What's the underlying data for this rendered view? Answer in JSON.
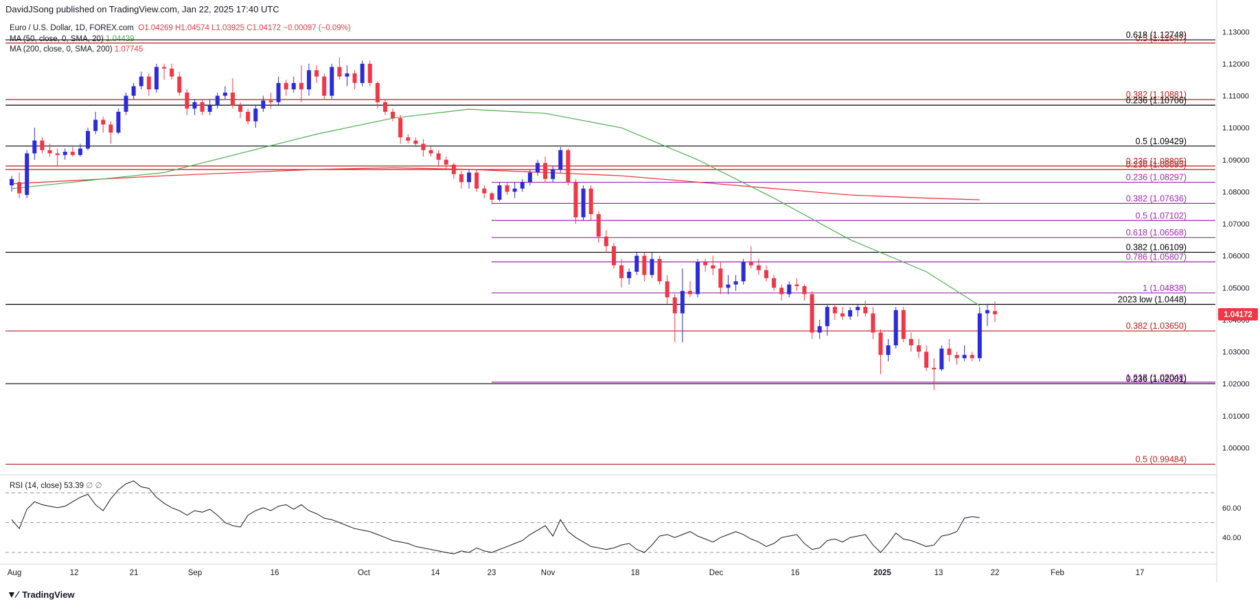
{
  "header": {
    "published": "DavidJSong published on TradingView.com, Jan 22, 2025 17:40 UTC"
  },
  "legend": {
    "symbol": "Euro / U.S. Dollar, 1D, FOREX.com",
    "ohlc": "O1.04269  H1.04574  L1.03925  C1.04172  −0.00097 (−0.09%)",
    "ma50_label": "MA (50, close, 0, SMA, 20)",
    "ma50_value": "1.04439",
    "ma200_label": "MA (200, close, 0, SMA, 200)",
    "ma200_value": "1.07745"
  },
  "rsi": {
    "label": "RSI (14, close)",
    "value": "53.39",
    "extra": "∅ ∅"
  },
  "footer": {
    "brand": "TradingView"
  },
  "colors": {
    "up": "#2b2bdb",
    "down": "#f23645",
    "ma50": "#4caf50",
    "ma200": "#f23645",
    "fib_purple": "#9c27b0",
    "level_black": "#000000",
    "level_red": "#b71c1c",
    "price_tag": "#f23645"
  },
  "chart_data": {
    "type": "candlestick",
    "title": "Euro / U.S. Dollar, 1D, FOREX.com",
    "ylim": [
      0.9915,
      1.1335
    ],
    "y_ticks": [
      "1.13000",
      "1.12000",
      "1.11000",
      "1.10000",
      "1.09000",
      "1.08000",
      "1.07000",
      "1.06000",
      "1.05000",
      "1.04000",
      "1.03000",
      "1.02000",
      "1.01000",
      "1.00000"
    ],
    "x_ticks": [
      "Aug",
      "12",
      "21",
      "Sep",
      "16",
      "Oct",
      "14",
      "23",
      "Nov",
      "18",
      "Dec",
      "16",
      "2025",
      "13",
      "22",
      "Feb",
      "17"
    ],
    "last_price": "1.04172",
    "levels": [
      {
        "label": "0.618 (1.12748)",
        "value": 1.12748,
        "style": "black"
      },
      {
        "label": "0.5 (1.12647)",
        "value": 1.12647,
        "style": "red"
      },
      {
        "label": "0.382 (1.10881)",
        "value": 1.10881,
        "style": "red"
      },
      {
        "label": "0.236 (1.10706)",
        "value": 1.10706,
        "style": "black"
      },
      {
        "label": "0.5 (1.09429)",
        "value": 1.09429,
        "style": "black"
      },
      {
        "label": "0.236 (1.08805)",
        "value": 1.08805,
        "style": "red"
      },
      {
        "label": "0.236 (1.08695)",
        "value": 1.08695,
        "style": "red"
      },
      {
        "label": "0.236 (1.08297)",
        "value": 1.08297,
        "style": "purple"
      },
      {
        "label": "0.382 (1.07636)",
        "value": 1.07636,
        "style": "purple"
      },
      {
        "label": "0.5 (1.07102)",
        "value": 1.07102,
        "style": "purple"
      },
      {
        "label": "0.618 (1.06568)",
        "value": 1.06568,
        "style": "purple"
      },
      {
        "label": "0.382 (1.06109)",
        "value": 1.06109,
        "style": "black"
      },
      {
        "label": "0.786 (1.05807)",
        "value": 1.05807,
        "style": "purple"
      },
      {
        "label": "1 (1.04838)",
        "value": 1.04838,
        "style": "purple"
      },
      {
        "label": "2023 low (1.0448)",
        "value": 1.0448,
        "style": "black"
      },
      {
        "label": "0.382 (1.03650)",
        "value": 1.0365,
        "style": "red"
      },
      {
        "label": "1.618 (1.02048)",
        "value": 1.02048,
        "style": "purple"
      },
      {
        "label": "0.236 (1.02001)",
        "value": 1.02001,
        "style": "black"
      },
      {
        "label": "0.5 (0.99484)",
        "value": 0.99484,
        "style": "red"
      }
    ],
    "candles": [
      [
        1.082,
        1.085,
        1.08,
        1.084
      ],
      [
        1.083,
        1.086,
        1.078,
        1.0795
      ],
      [
        1.079,
        1.093,
        1.078,
        1.092
      ],
      [
        1.092,
        1.1,
        1.09,
        1.096
      ],
      [
        1.096,
        1.097,
        1.092,
        1.093
      ],
      [
        1.093,
        1.095,
        1.091,
        1.092
      ],
      [
        1.092,
        1.0935,
        1.088,
        1.0915
      ],
      [
        1.0915,
        1.0935,
        1.09,
        1.0925
      ],
      [
        1.0925,
        1.094,
        1.091,
        1.0915
      ],
      [
        1.0915,
        1.095,
        1.091,
        1.0935
      ],
      [
        1.0935,
        1.1,
        1.093,
        1.099
      ],
      [
        1.099,
        1.105,
        1.098,
        1.1025
      ],
      [
        1.1025,
        1.1035,
        1.0985,
        1.101
      ],
      [
        1.101,
        1.102,
        1.095,
        1.0985
      ],
      [
        1.0985,
        1.106,
        1.098,
        1.105
      ],
      [
        1.105,
        1.111,
        1.104,
        1.11
      ],
      [
        1.11,
        1.114,
        1.109,
        1.113
      ],
      [
        1.113,
        1.1175,
        1.112,
        1.116
      ],
      [
        1.116,
        1.117,
        1.11,
        1.112
      ],
      [
        1.112,
        1.12,
        1.111,
        1.119
      ],
      [
        1.119,
        1.12,
        1.115,
        1.1185
      ],
      [
        1.1185,
        1.12,
        1.115,
        1.116
      ],
      [
        1.116,
        1.1175,
        1.11,
        1.111
      ],
      [
        1.111,
        1.112,
        1.104,
        1.106
      ],
      [
        1.106,
        1.109,
        1.104,
        1.108
      ],
      [
        1.108,
        1.109,
        1.104,
        1.105
      ],
      [
        1.105,
        1.109,
        1.104,
        1.107
      ],
      [
        1.107,
        1.111,
        1.106,
        1.11
      ],
      [
        1.11,
        1.113,
        1.109,
        1.111
      ],
      [
        1.111,
        1.1155,
        1.106,
        1.107
      ],
      [
        1.107,
        1.108,
        1.103,
        1.105
      ],
      [
        1.105,
        1.106,
        1.101,
        1.102
      ],
      [
        1.102,
        1.107,
        1.1,
        1.106
      ],
      [
        1.106,
        1.11,
        1.105,
        1.1085
      ],
      [
        1.1085,
        1.111,
        1.106,
        1.108
      ],
      [
        1.108,
        1.116,
        1.107,
        1.114
      ],
      [
        1.114,
        1.115,
        1.11,
        1.112
      ],
      [
        1.112,
        1.116,
        1.111,
        1.114
      ],
      [
        1.114,
        1.1195,
        1.108,
        1.112
      ],
      [
        1.112,
        1.12,
        1.11,
        1.118
      ],
      [
        1.118,
        1.1195,
        1.114,
        1.116
      ],
      [
        1.116,
        1.117,
        1.109,
        1.11
      ],
      [
        1.11,
        1.12,
        1.109,
        1.119
      ],
      [
        1.119,
        1.122,
        1.115,
        1.116
      ],
      [
        1.116,
        1.1195,
        1.113,
        1.117
      ],
      [
        1.117,
        1.118,
        1.112,
        1.114
      ],
      [
        1.114,
        1.121,
        1.113,
        1.12
      ],
      [
        1.12,
        1.121,
        1.113,
        1.114
      ],
      [
        1.114,
        1.1145,
        1.106,
        1.108
      ],
      [
        1.108,
        1.109,
        1.104,
        1.105
      ],
      [
        1.105,
        1.106,
        1.102,
        1.103
      ],
      [
        1.103,
        1.104,
        1.095,
        1.097
      ],
      [
        1.097,
        1.098,
        1.095,
        1.096
      ],
      [
        1.096,
        1.097,
        1.094,
        1.095
      ],
      [
        1.095,
        1.0965,
        1.091,
        1.093
      ],
      [
        1.093,
        1.0945,
        1.091,
        1.092
      ],
      [
        1.092,
        1.093,
        1.088,
        1.09
      ],
      [
        1.09,
        1.091,
        1.087,
        1.0885
      ],
      [
        1.0885,
        1.089,
        1.084,
        1.0855
      ],
      [
        1.0855,
        1.0865,
        1.081,
        1.083
      ],
      [
        1.083,
        1.087,
        1.081,
        1.086
      ],
      [
        1.086,
        1.087,
        1.08,
        1.081
      ],
      [
        1.081,
        1.082,
        1.078,
        1.0795
      ],
      [
        1.0795,
        1.08,
        1.076,
        1.0775
      ],
      [
        1.0775,
        1.083,
        1.077,
        1.082
      ],
      [
        1.082,
        1.083,
        1.079,
        1.08
      ],
      [
        1.08,
        1.083,
        1.078,
        1.081
      ],
      [
        1.081,
        1.084,
        1.08,
        1.083
      ],
      [
        1.083,
        1.087,
        1.082,
        1.086
      ],
      [
        1.086,
        1.09,
        1.085,
        1.089
      ],
      [
        1.089,
        1.091,
        1.083,
        1.084
      ],
      [
        1.084,
        1.088,
        1.083,
        1.087
      ],
      [
        1.087,
        1.094,
        1.086,
        1.093
      ],
      [
        1.093,
        1.0935,
        1.082,
        1.083
      ],
      [
        1.083,
        1.084,
        1.07,
        1.072
      ],
      [
        1.072,
        1.082,
        1.071,
        1.081
      ],
      [
        1.081,
        1.082,
        1.071,
        1.073
      ],
      [
        1.073,
        1.074,
        1.064,
        1.066
      ],
      [
        1.066,
        1.068,
        1.061,
        1.063
      ],
      [
        1.063,
        1.064,
        1.056,
        1.057
      ],
      [
        1.057,
        1.059,
        1.05,
        1.053
      ],
      [
        1.053,
        1.056,
        1.051,
        1.055
      ],
      [
        1.055,
        1.061,
        1.054,
        1.06
      ],
      [
        1.06,
        1.061,
        1.052,
        1.054
      ],
      [
        1.054,
        1.061,
        1.053,
        1.059
      ],
      [
        1.059,
        1.06,
        1.051,
        1.052
      ],
      [
        1.052,
        1.054,
        1.045,
        1.047
      ],
      [
        1.047,
        1.048,
        1.033,
        1.042
      ],
      [
        1.042,
        1.056,
        1.033,
        1.049
      ],
      [
        1.049,
        1.052,
        1.047,
        1.048
      ],
      [
        1.048,
        1.059,
        1.047,
        1.058
      ],
      [
        1.058,
        1.059,
        1.055,
        1.057
      ],
      [
        1.057,
        1.06,
        1.054,
        1.056
      ],
      [
        1.056,
        1.058,
        1.048,
        1.05
      ],
      [
        1.05,
        1.054,
        1.048,
        1.051
      ],
      [
        1.051,
        1.054,
        1.049,
        1.052
      ],
      [
        1.052,
        1.059,
        1.051,
        1.058
      ],
      [
        1.058,
        1.063,
        1.056,
        1.057
      ],
      [
        1.057,
        1.059,
        1.054,
        1.0555
      ],
      [
        1.0555,
        1.057,
        1.052,
        1.053
      ],
      [
        1.053,
        1.054,
        1.049,
        1.05
      ],
      [
        1.05,
        1.051,
        1.046,
        1.048
      ],
      [
        1.048,
        1.052,
        1.047,
        1.051
      ],
      [
        1.051,
        1.053,
        1.049,
        1.0505
      ],
      [
        1.0505,
        1.051,
        1.046,
        1.048
      ],
      [
        1.048,
        1.049,
        1.034,
        1.036
      ],
      [
        1.036,
        1.04,
        1.034,
        1.038
      ],
      [
        1.038,
        1.045,
        1.035,
        1.044
      ],
      [
        1.044,
        1.045,
        1.04,
        1.042
      ],
      [
        1.042,
        1.044,
        1.04,
        1.041
      ],
      [
        1.041,
        1.044,
        1.04,
        1.043
      ],
      [
        1.043,
        1.045,
        1.041,
        1.044
      ],
      [
        1.044,
        1.046,
        1.041,
        1.042
      ],
      [
        1.042,
        1.044,
        1.034,
        1.036
      ],
      [
        1.036,
        1.037,
        1.023,
        1.029
      ],
      [
        1.029,
        1.034,
        1.027,
        1.032
      ],
      [
        1.032,
        1.044,
        1.031,
        1.043
      ],
      [
        1.043,
        1.044,
        1.033,
        1.034
      ],
      [
        1.034,
        1.036,
        1.03,
        1.032
      ],
      [
        1.032,
        1.034,
        1.028,
        1.03
      ],
      [
        1.03,
        1.032,
        1.024,
        1.025
      ],
      [
        1.025,
        1.028,
        1.018,
        1.0245
      ],
      [
        1.0245,
        1.032,
        1.024,
        1.031
      ],
      [
        1.031,
        1.034,
        1.027,
        1.029
      ],
      [
        1.029,
        1.03,
        1.026,
        1.028
      ],
      [
        1.028,
        1.032,
        1.027,
        1.029
      ],
      [
        1.029,
        1.03,
        1.027,
        1.028
      ],
      [
        1.028,
        1.044,
        1.027,
        1.042
      ],
      [
        1.042,
        1.045,
        1.038,
        1.043
      ],
      [
        1.0427,
        1.0457,
        1.0393,
        1.0417
      ]
    ],
    "ma50": [
      [
        0,
        1.081
      ],
      [
        20,
        1.086
      ],
      [
        40,
        1.098
      ],
      [
        50,
        1.103
      ],
      [
        60,
        1.1058
      ],
      [
        70,
        1.1045
      ],
      [
        80,
        1.1
      ],
      [
        90,
        1.09
      ],
      [
        100,
        1.078
      ],
      [
        110,
        1.065
      ],
      [
        120,
        1.055
      ],
      [
        127,
        1.0444
      ]
    ],
    "ma200": [
      [
        0,
        1.0825
      ],
      [
        20,
        1.085
      ],
      [
        40,
        1.087
      ],
      [
        50,
        1.0875
      ],
      [
        60,
        1.087
      ],
      [
        70,
        1.086
      ],
      [
        80,
        1.085
      ],
      [
        90,
        1.083
      ],
      [
        100,
        1.081
      ],
      [
        110,
        1.079
      ],
      [
        120,
        1.078
      ],
      [
        127,
        1.0775
      ]
    ],
    "rsi": [
      52,
      46,
      59,
      64,
      62,
      61,
      60,
      61,
      64,
      67,
      69,
      62,
      58,
      66,
      72,
      76,
      78,
      74,
      73,
      67,
      63,
      60,
      58,
      55,
      58,
      57,
      59,
      55,
      50,
      48,
      47,
      55,
      58,
      60,
      58,
      61,
      62,
      59,
      62,
      58,
      56,
      53,
      52,
      50,
      48,
      46,
      45,
      44,
      42,
      40,
      38,
      37,
      36,
      34,
      33,
      32,
      31,
      30,
      29,
      31,
      30,
      33,
      31,
      30,
      32,
      34,
      36,
      38,
      42,
      45,
      48,
      41,
      52,
      44,
      40,
      37,
      34,
      33,
      32,
      33,
      35,
      36,
      32,
      30,
      35,
      41,
      42,
      40,
      42,
      44,
      41,
      39,
      37,
      40,
      42,
      44,
      42,
      39,
      37,
      34,
      36,
      40,
      41,
      42,
      36,
      32,
      33,
      38,
      39,
      37,
      40,
      41,
      42,
      35,
      30,
      36,
      43,
      39,
      38,
      36,
      34,
      35,
      41,
      42,
      44,
      53,
      54,
      53.39
    ],
    "rsi_ylim": [
      24,
      82
    ],
    "rsi_ticks": [
      "60.00",
      "40.00"
    ]
  }
}
